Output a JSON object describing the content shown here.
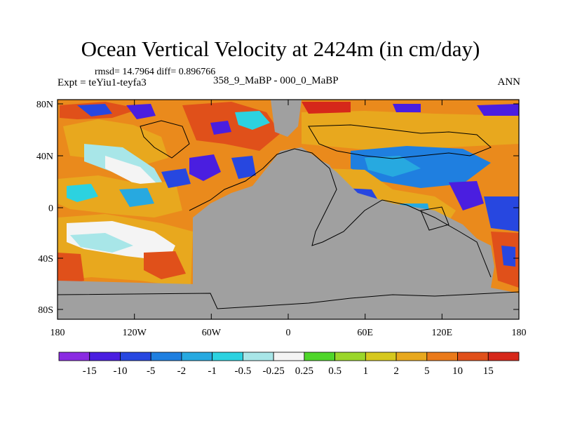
{
  "title": "Ocean Vertical Velocity at 2424m (in cm/day)",
  "subtitle": "rmsd= 14.7964  diff= 0.896766",
  "left_label": "Expt = teYiu1-teyfa3",
  "center_label": "358_9_MaBP - 000_0_MaBP",
  "right_label": "ANN",
  "axes": {
    "lat_ticks": [
      "80N",
      "40N",
      "0",
      "40S",
      "80S"
    ],
    "lon_ticks": [
      "180",
      "120W",
      "60W",
      "0",
      "60E",
      "120E",
      "180"
    ]
  },
  "colorbar": {
    "labels": [
      "-15",
      "-10",
      "-5",
      "-2",
      "-1",
      "-0.5",
      "-0.25",
      "0.25",
      "0.5",
      "1",
      "2",
      "5",
      "10",
      "15"
    ],
    "colors": [
      "#8a2be2",
      "#4a1ee0",
      "#2747e0",
      "#1f7fe0",
      "#27a9e0",
      "#2cd2e0",
      "#a8e6e8",
      "#f4f4f4",
      "#4fd62a",
      "#9ad62a",
      "#d6c81e",
      "#e8a81e",
      "#ea7a1a",
      "#e0501a",
      "#d6281a"
    ]
  },
  "land_color": "#a0a0a0"
}
